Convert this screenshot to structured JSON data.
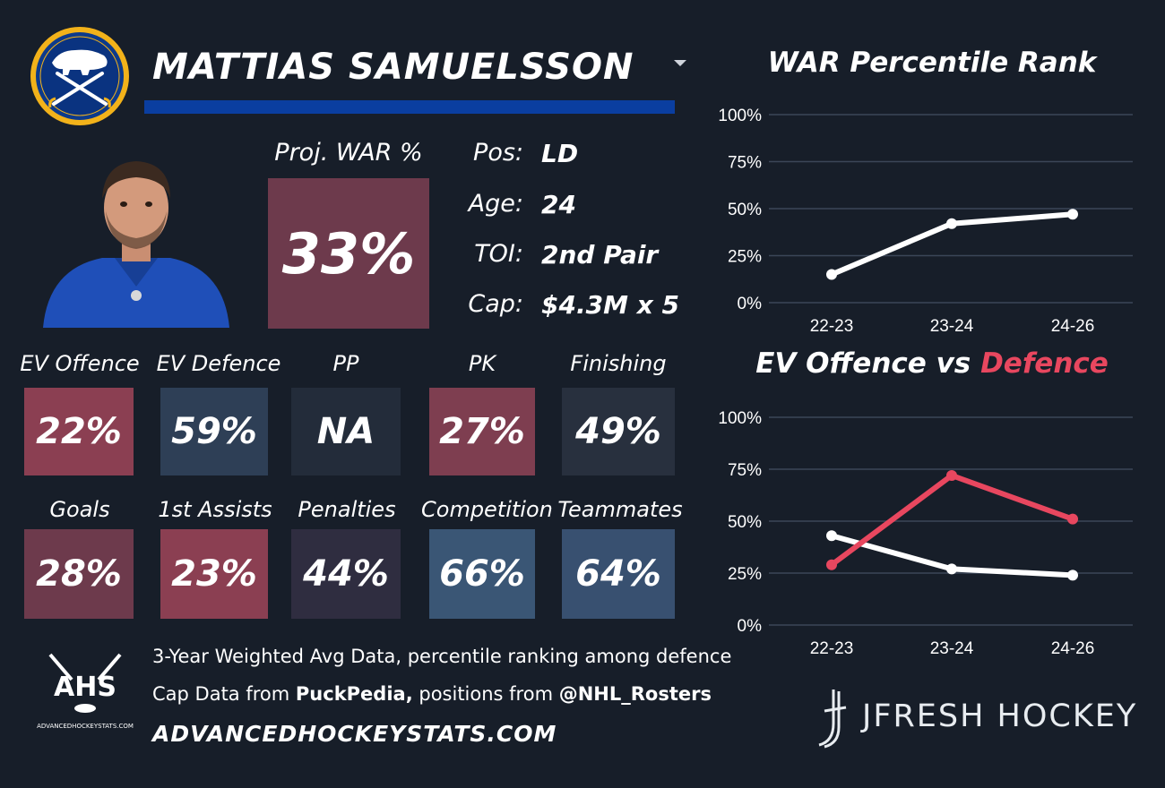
{
  "player": {
    "name": "MATTIAS SAMUELSSON",
    "team_logo": "sabres-logo",
    "photo": "player-headshot"
  },
  "war": {
    "label": "Proj. WAR %",
    "value": "33%",
    "color": "#6d3a4c"
  },
  "info": [
    {
      "label": "Pos:",
      "value": "LD"
    },
    {
      "label": "Age:",
      "value": "24"
    },
    {
      "label": "TOI:",
      "value": "2nd Pair"
    },
    {
      "label": "Cap:",
      "value": "$4.3M x 5"
    }
  ],
  "stats_row1": [
    {
      "label": "EV Offence",
      "value": "22%",
      "color": "#8b3f52"
    },
    {
      "label": "EV Defence",
      "value": "59%",
      "color": "#2e3f56"
    },
    {
      "label": "PP",
      "value": "NA",
      "color": "#232c3a"
    },
    {
      "label": "PK",
      "value": "27%",
      "color": "#7e3e50"
    },
    {
      "label": "Finishing",
      "value": "49%",
      "color": "#28303e"
    }
  ],
  "stats_row2": [
    {
      "label": "Goals",
      "value": "28%",
      "color": "#6d3a4c"
    },
    {
      "label": "1st Assists",
      "value": "23%",
      "color": "#8b3f52"
    },
    {
      "label": "Penalties",
      "value": "44%",
      "color": "#2f2d40"
    },
    {
      "label": "Competition",
      "value": "66%",
      "color": "#3a5675"
    },
    {
      "label": "Teammates",
      "value": "64%",
      "color": "#385070"
    }
  ],
  "footer": {
    "line1": "3-Year Weighted Avg Data, percentile ranking among defence",
    "line2_prefix": "Cap Data from ",
    "line2_bold1": "PuckPedia,",
    "line2_mid": " positions from ",
    "line2_bold2": "@NHL_Rosters",
    "site": "ADVANCEDHOCKEYSTATS.COM",
    "ahs_logo_text": "AHS",
    "ahs_logo_sub": "ADVANCEDHOCKEYSTATS.COM",
    "brand": "JFRESH HOCKEY"
  },
  "colors": {
    "background": "#171e29",
    "accent_blue": "#0a3ea0",
    "defence_red": "#e8475f",
    "offence_white": "#ffffff"
  },
  "chart_data": [
    {
      "type": "line",
      "title": "WAR Percentile Rank",
      "categories": [
        "22-23",
        "23-24",
        "24-26"
      ],
      "series": [
        {
          "values": [
            15,
            42,
            47
          ],
          "color": "#ffffff"
        }
      ],
      "yticks": [
        "100%",
        "75%",
        "50%",
        "25%",
        "0%"
      ],
      "ylim": [
        0,
        100
      ],
      "grid": true
    },
    {
      "type": "line",
      "title_part1": "EV Offence vs ",
      "title_part2": "Defence",
      "categories": [
        "22-23",
        "23-24",
        "24-26"
      ],
      "series": [
        {
          "values": [
            43,
            27,
            24
          ],
          "color": "#ffffff"
        },
        {
          "values": [
            29,
            72,
            51
          ],
          "color": "#e8475f"
        }
      ],
      "yticks": [
        "100%",
        "75%",
        "50%",
        "25%",
        "0%"
      ],
      "ylim": [
        0,
        100
      ],
      "grid": true
    }
  ]
}
